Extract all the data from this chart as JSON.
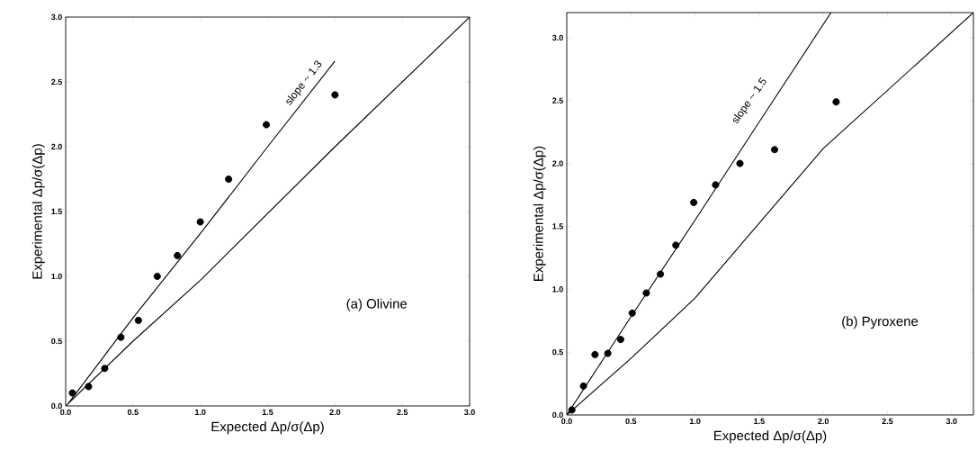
{
  "chart_data": [
    {
      "type": "scatter",
      "xlabel": "Expected Δp/σ(Δp)",
      "ylabel": "Experimental Δp/σ(Δp)",
      "grid": false,
      "xlim": [
        0,
        3
      ],
      "ylim": [
        0,
        3
      ],
      "xticks": [
        {
          "value": 0,
          "label": "0.0"
        },
        {
          "value": 0.5,
          "label": "0.5"
        },
        {
          "value": 1,
          "label": "1.0"
        },
        {
          "value": 1.5,
          "label": "1.5"
        },
        {
          "value": 2,
          "label": "2.0"
        },
        {
          "value": 2.5,
          "label": "2.5"
        },
        {
          "value": 3,
          "label": "3.0"
        }
      ],
      "yticks": [
        {
          "value": 0,
          "label": "0.0"
        },
        {
          "value": 0.5,
          "label": "0.5"
        },
        {
          "value": 1,
          "label": "1.0"
        },
        {
          "value": 1.5,
          "label": "1.5"
        },
        {
          "value": 2,
          "label": "2.0"
        },
        {
          "value": 2.5,
          "label": "2.5"
        },
        {
          "value": 3,
          "label": "3.0"
        }
      ],
      "series": [
        {
          "marker": "circle",
          "color": "#000000",
          "x": [
            0.05,
            0.17,
            0.29,
            0.41,
            0.54,
            0.68,
            0.83,
            1.0,
            1.21,
            1.49,
            2.0
          ],
          "values": [
            0.1,
            0.15,
            0.29,
            0.53,
            0.66,
            1.0,
            1.16,
            1.42,
            1.75,
            2.17,
            2.4
          ]
        },
        {
          "type": "line",
          "marker": "none",
          "color": "#000000",
          "x": [
            0.02,
            0.5,
            1.0,
            1.5,
            2.0
          ],
          "values": [
            0.02,
            0.68,
            1.33,
            2.0,
            2.66
          ]
        },
        {
          "type": "line",
          "marker": "none",
          "color": "#000000",
          "x": [
            0,
            0.5,
            1.0,
            2.0,
            3.0
          ],
          "values": [
            0,
            0.5,
            0.97,
            2.0,
            3.0
          ]
        }
      ],
      "annotations": [
        "slope ~ 1.3",
        "(a) Olivine"
      ]
    },
    {
      "type": "scatter",
      "xlabel": "Expected Δp/σ(Δp)",
      "ylabel": "Experimental Δp/σ(Δp)",
      "grid": false,
      "xlim": [
        0,
        3.17
      ],
      "ylim": [
        0,
        3.2
      ],
      "xticks": [
        {
          "value": 0,
          "label": "0.0"
        },
        {
          "value": 0.5,
          "label": "0.5"
        },
        {
          "value": 1,
          "label": "1.0"
        },
        {
          "value": 1.5,
          "label": "1.5"
        },
        {
          "value": 2,
          "label": "2.0"
        },
        {
          "value": 2.5,
          "label": "2.5"
        },
        {
          "value": 3,
          "label": "3.0"
        }
      ],
      "yticks": [
        {
          "value": 0,
          "label": "0.0"
        },
        {
          "value": 0.5,
          "label": "0.5"
        },
        {
          "value": 1,
          "label": "1.0"
        },
        {
          "value": 1.5,
          "label": "1.5"
        },
        {
          "value": 2,
          "label": "2.0"
        },
        {
          "value": 2.5,
          "label": "2.5"
        },
        {
          "value": 3,
          "label": "3.0"
        }
      ],
      "series": [
        {
          "marker": "circle",
          "color": "#000000",
          "x": [
            0.04,
            0.13,
            0.22,
            0.32,
            0.42,
            0.51,
            0.62,
            0.73,
            0.85,
            0.99,
            1.16,
            1.35,
            1.62,
            2.1
          ],
          "values": [
            0.04,
            0.23,
            0.48,
            0.49,
            0.6,
            0.81,
            0.97,
            1.12,
            1.35,
            1.69,
            1.83,
            2.0,
            2.11,
            2.49
          ]
        },
        {
          "type": "line",
          "marker": "none",
          "color": "#000000",
          "x": [
            0,
            0.5,
            1.0,
            1.5,
            2.06
          ],
          "values": [
            0,
            0.78,
            1.55,
            2.33,
            3.2
          ]
        },
        {
          "type": "line",
          "marker": "none",
          "color": "#000000",
          "x": [
            0,
            0.5,
            1.0,
            2.0,
            3.17
          ],
          "values": [
            0,
            0.45,
            0.93,
            2.12,
            3.2
          ]
        }
      ],
      "annotations": [
        "slope ~ 1.5",
        "(b) Pyroxene"
      ]
    }
  ]
}
